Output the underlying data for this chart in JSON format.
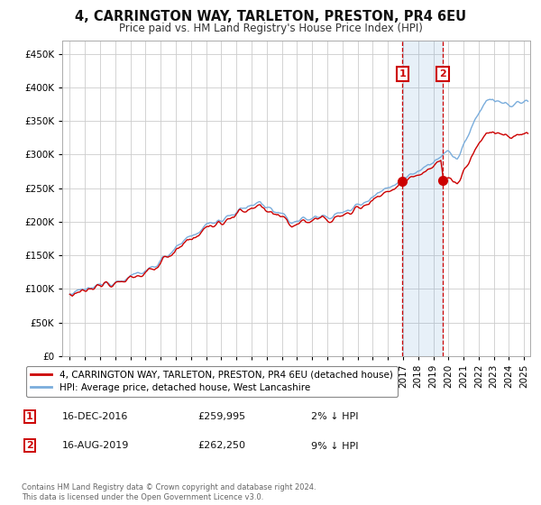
{
  "title": "4, CARRINGTON WAY, TARLETON, PRESTON, PR4 6EU",
  "subtitle": "Price paid vs. HM Land Registry's House Price Index (HPI)",
  "legend_line1": "4, CARRINGTON WAY, TARLETON, PRESTON, PR4 6EU (detached house)",
  "legend_line2": "HPI: Average price, detached house, West Lancashire",
  "annotation1_label": "1",
  "annotation1_date": "16-DEC-2016",
  "annotation1_price": "£259,995",
  "annotation1_hpi": "2% ↓ HPI",
  "annotation2_label": "2",
  "annotation2_date": "16-AUG-2019",
  "annotation2_price": "£262,250",
  "annotation2_hpi": "9% ↓ HPI",
  "footer": "Contains HM Land Registry data © Crown copyright and database right 2024.\nThis data is licensed under the Open Government Licence v3.0.",
  "hpi_color": "#7aaddc",
  "price_color": "#cc0000",
  "annotation_color": "#cc0000",
  "background_color": "#ffffff",
  "grid_color": "#cccccc",
  "ylim_min": 0,
  "ylim_max": 470000,
  "yticks": [
    0,
    50000,
    100000,
    150000,
    200000,
    250000,
    300000,
    350000,
    400000,
    450000
  ],
  "sale1_year": 2016.96,
  "sale1_price": 259995,
  "sale2_year": 2019.62,
  "sale2_price": 262250
}
